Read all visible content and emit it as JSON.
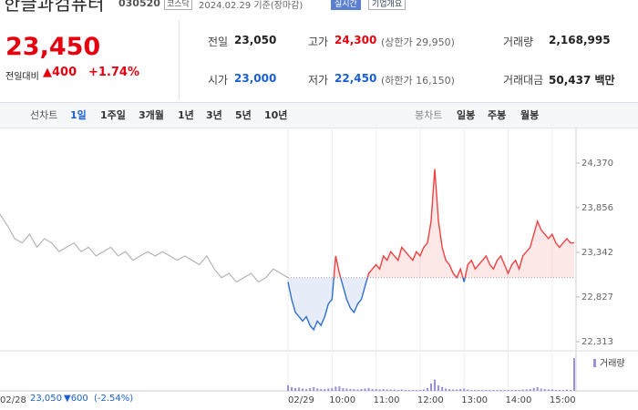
{
  "header": {
    "title": "한글과컴퓨터",
    "code": "030520",
    "market": "코스닥",
    "date": "2024.02.29 기준(장마감)",
    "realtime": "실시간",
    "company_info": "기업개요"
  },
  "price": {
    "current": "23,450",
    "change_label": "전일대비",
    "change": "▲400",
    "change_pct": "+1.74%"
  },
  "stats": [
    {
      "label": "전일",
      "value": "23,050",
      "color": "#222222"
    },
    {
      "label": "고가",
      "value": "24,300",
      "note": "(상한가 29,950)",
      "color": "#e4000f"
    },
    {
      "label": "거래량",
      "value": "2,168,995",
      "color": "#222222"
    },
    {
      "label": "시가",
      "value": "23,000",
      "color": "#1a5fd0"
    },
    {
      "label": "저가",
      "value": "22,450",
      "note": "(하한가 16,150)",
      "color": "#1a5fd0"
    },
    {
      "label": "거래대금",
      "value": "50,437 백만",
      "color": "#222222"
    }
  ],
  "tabs": {
    "line_label": "선차트",
    "line_periods": [
      "1일",
      "1주일",
      "3개월",
      "1년",
      "3년",
      "5년",
      "10년"
    ],
    "selected": 0,
    "candle_label": "봉차트",
    "candle_periods": [
      "일봉",
      "주봉",
      "월봉"
    ]
  },
  "chart": {
    "type": "line",
    "ylim": [
      22208,
      24779
    ],
    "yticks": [
      {
        "value": 24370,
        "label": "24,370"
      },
      {
        "value": 23856,
        "label": "23,856"
      },
      {
        "value": 23342,
        "label": "23,342"
      },
      {
        "value": 22827,
        "label": "22,827"
      },
      {
        "value": 22313,
        "label": "22,313"
      }
    ],
    "base": 23050,
    "prev_day": {
      "color": "#b5b5b5",
      "values": [
        23780,
        23650,
        23500,
        23450,
        23550,
        23400,
        23500,
        23450,
        23350,
        23400,
        23450,
        23350,
        23400,
        23300,
        23350,
        23400,
        23300,
        23350,
        23250,
        23300,
        23350,
        23300,
        23350,
        23300,
        23250,
        23300,
        23250,
        23200,
        23300,
        23150,
        23050,
        23100,
        23000,
        23050,
        23100,
        23000,
        23050,
        23150,
        23100,
        23050
      ]
    },
    "today": {
      "up_color": "#f04040",
      "down_color": "#2f6fd0",
      "values": [
        23000,
        22800,
        22650,
        22600,
        22550,
        22600,
        22500,
        22450,
        22550,
        22500,
        22600,
        22750,
        22800,
        23300,
        23100,
        22950,
        22800,
        22700,
        22650,
        22750,
        22800,
        22950,
        23100,
        23150,
        23200,
        23150,
        23300,
        23250,
        23350,
        23300,
        23250,
        23400,
        23350,
        23300,
        23250,
        23350,
        23300,
        23400,
        23450,
        23700,
        24300,
        23700,
        23400,
        23250,
        23200,
        23100,
        23050,
        23150,
        23000,
        23200,
        23250,
        23150,
        23200,
        23250,
        23300,
        23200,
        23150,
        23250,
        23300,
        23200,
        23100,
        23200,
        23250,
        23150,
        23300,
        23350,
        23400,
        23550,
        23700,
        23600,
        23550,
        23500,
        23550,
        23450,
        23400,
        23450,
        23500,
        23450,
        23450
      ]
    },
    "volume": {
      "label": "거래량",
      "color": "#9a8fd8",
      "values": [
        60000,
        40000,
        30000,
        35000,
        25000,
        20000,
        30000,
        40000,
        25000,
        20000,
        20000,
        25000,
        30000,
        45000,
        50000,
        30000,
        25000,
        20000,
        20000,
        15000,
        20000,
        25000,
        30000,
        20000,
        20000,
        15000,
        20000,
        15000,
        15000,
        15000,
        10000,
        15000,
        10000,
        10000,
        10000,
        10000,
        10000,
        15000,
        30000,
        80000,
        120000,
        60000,
        40000,
        25000,
        20000,
        15000,
        15000,
        20000,
        25000,
        15000,
        10000,
        10000,
        10000,
        10000,
        10000,
        10000,
        10000,
        10000,
        10000,
        10000,
        10000,
        10000,
        10000,
        10000,
        15000,
        15000,
        20000,
        30000,
        40000,
        25000,
        20000,
        15000,
        15000,
        10000,
        10000,
        10000,
        15000,
        10000,
        350000
      ]
    },
    "time_labels": [
      "02/28",
      "02/29",
      "10:00",
      "11:00",
      "12:00",
      "13:00",
      "14:00",
      "15:00"
    ]
  },
  "footer": {
    "price": "23,050",
    "change": "▼600",
    "change_pct": "(-2.54%)"
  }
}
